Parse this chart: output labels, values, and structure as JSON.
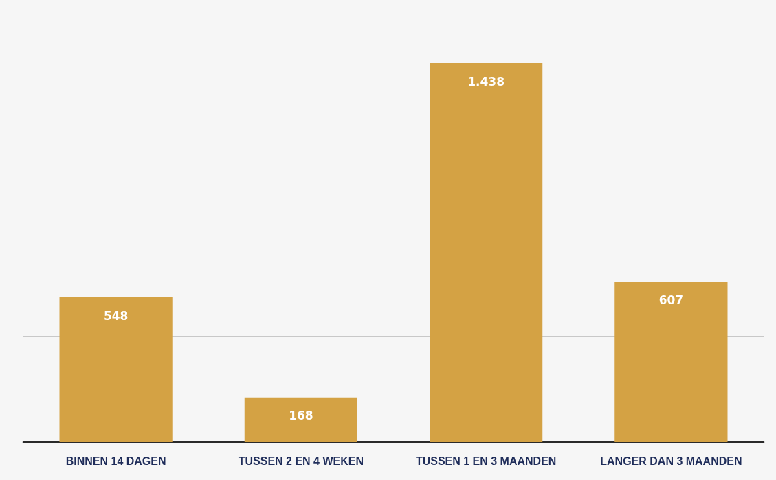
{
  "chart_data": {
    "type": "bar",
    "categories": [
      "BINNEN 14 DAGEN",
      "TUSSEN 2 EN 4 WEKEN",
      "TUSSEN 1 EN 3 MAANDEN",
      "LANGER DAN 3 MAANDEN"
    ],
    "values": [
      548,
      168,
      1438,
      607
    ],
    "value_labels": [
      "548",
      "168",
      "1.438",
      "607"
    ],
    "color": "#d4a244",
    "ylim": [
      0,
      1600
    ],
    "yticks": [
      {
        "value": 0,
        "label": null
      },
      {
        "value": 200,
        "label": null
      },
      {
        "value": 400,
        "label": null
      },
      {
        "value": 600,
        "label": null
      },
      {
        "value": 800,
        "label": null
      },
      {
        "value": 1000,
        "label": null
      },
      {
        "value": 1200,
        "label": null
      },
      {
        "value": 1400,
        "label": null
      },
      {
        "value": 1600,
        "label": null
      }
    ],
    "tick_labels": "x",
    "grid": "y"
  }
}
